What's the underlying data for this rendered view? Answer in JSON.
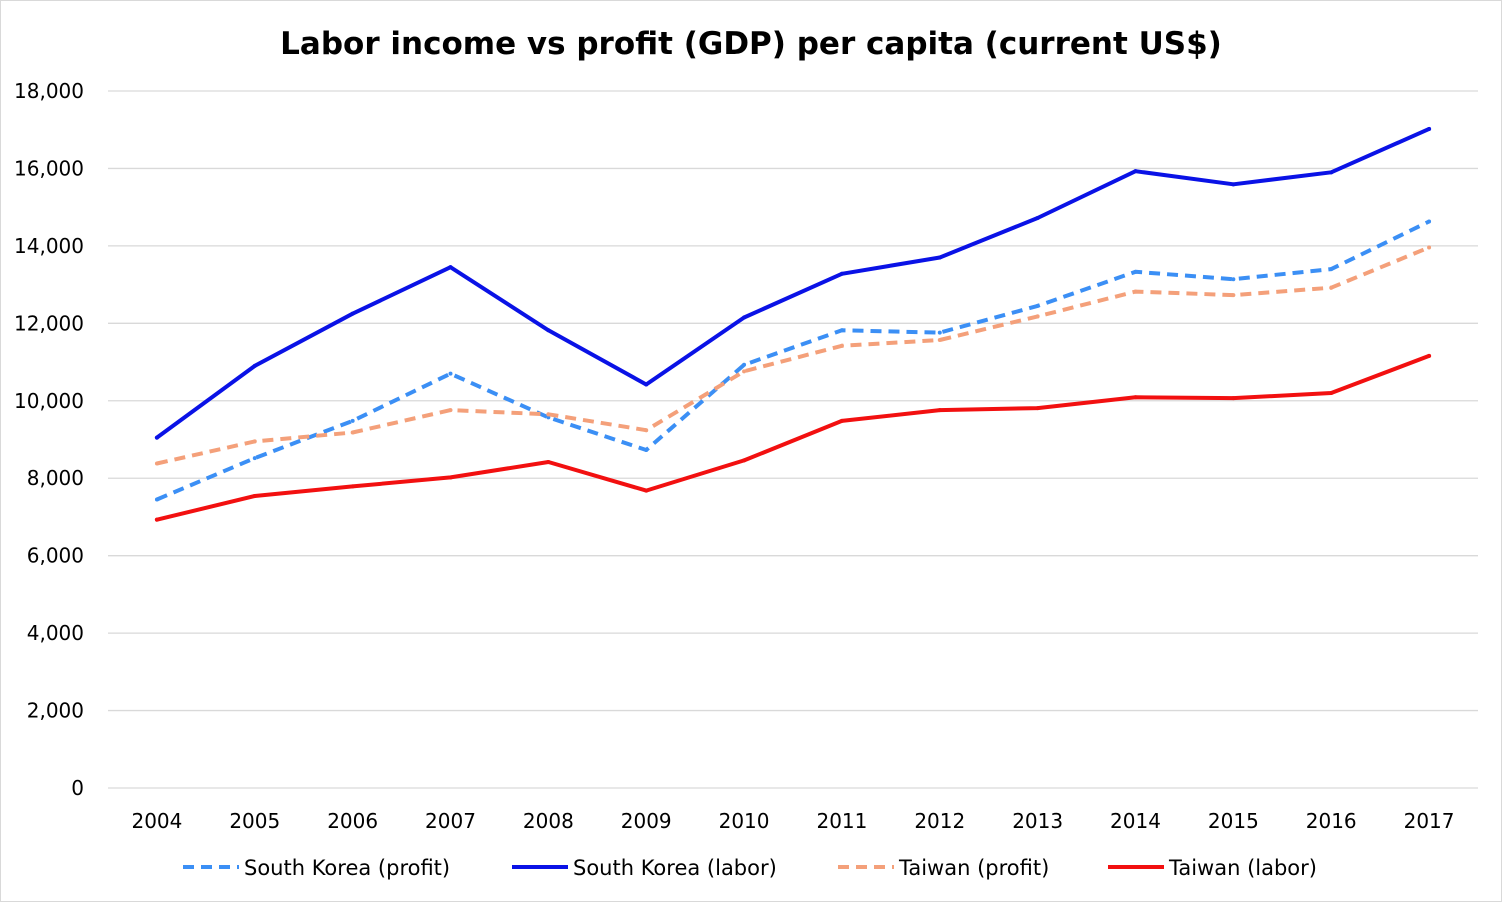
{
  "chart_data": {
    "type": "line",
    "title": "Labor income vs profit (GDP) per capita (current US$)",
    "xlabel": "",
    "ylabel": "",
    "categories": [
      "2004",
      "2005",
      "2006",
      "2007",
      "2008",
      "2009",
      "2010",
      "2011",
      "2012",
      "2013",
      "2014",
      "2015",
      "2016",
      "2017"
    ],
    "ylim": [
      0,
      18000
    ],
    "yticks": [
      0,
      2000,
      4000,
      6000,
      8000,
      10000,
      12000,
      14000,
      16000,
      18000
    ],
    "ytick_labels": [
      "0",
      "2,000",
      "4,000",
      "6,000",
      "8,000",
      "10,000",
      "12,000",
      "14,000",
      "16,000",
      "18,000"
    ],
    "grid": true,
    "legend_position": "bottom",
    "series": [
      {
        "name": "South Korea (profit)",
        "color": "#3b8ff5",
        "dashed": true,
        "values": [
          7450,
          8520,
          9480,
          10700,
          9570,
          8730,
          10930,
          11820,
          11760,
          12450,
          13330,
          13140,
          13400,
          14630
        ]
      },
      {
        "name": "South Korea (labor)",
        "color": "#0a12e6",
        "dashed": false,
        "values": [
          9050,
          10900,
          12250,
          13450,
          11820,
          10420,
          12150,
          13280,
          13700,
          14720,
          15930,
          15590,
          15900,
          17020
        ]
      },
      {
        "name": "Taiwan (profit)",
        "color": "#f4a07a",
        "dashed": true,
        "values": [
          8380,
          8950,
          9180,
          9760,
          9650,
          9240,
          10760,
          11420,
          11570,
          12180,
          12820,
          12730,
          12920,
          13960
        ]
      },
      {
        "name": "Taiwan (labor)",
        "color": "#f21010",
        "dashed": false,
        "values": [
          6930,
          7540,
          7790,
          8020,
          8420,
          7680,
          8460,
          9480,
          9760,
          9810,
          10090,
          10070,
          10200,
          11160
        ]
      }
    ]
  }
}
